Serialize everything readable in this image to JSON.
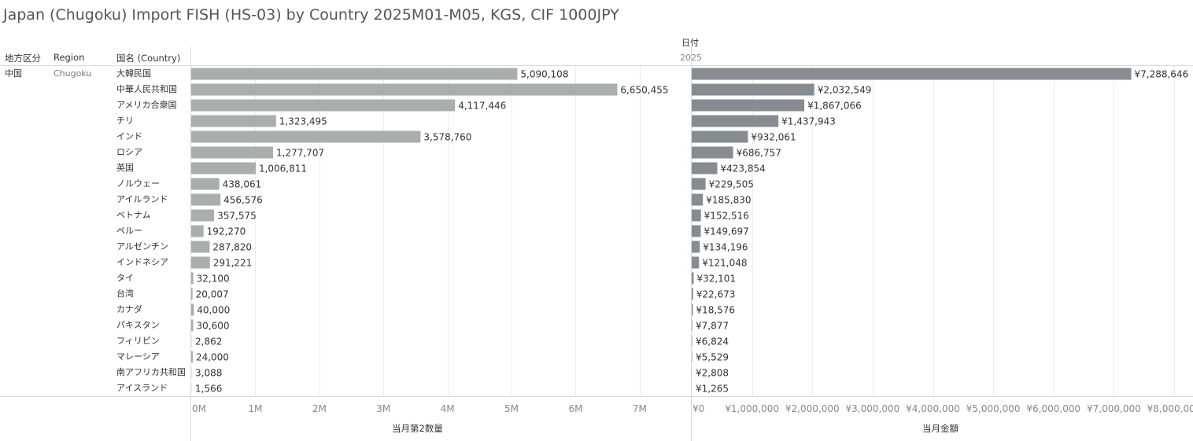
{
  "title": "Japan (Chugoku) Import FISH (HS-03) by Country 2025M01-M05, KGS, CIF 1000JPY",
  "headers": {
    "pref": "地方区分",
    "region": "Region",
    "country": "国名 (Country)",
    "date": "日付",
    "year": "2025"
  },
  "row_group": {
    "pref": "中国",
    "region": "Chugoku"
  },
  "colors": {
    "quantity_bar": "#a8adad",
    "amount_bar": "#858c92",
    "grid": "#ececec",
    "axis": "#d9d9d9"
  },
  "chart_data": [
    {
      "type": "bar",
      "orientation": "horizontal",
      "xlabel": "当月第2数量",
      "xlim": [
        0,
        7800000
      ],
      "ticks": [
        0,
        1000000,
        2000000,
        3000000,
        4000000,
        5000000,
        6000000,
        7000000
      ],
      "tick_labels": [
        "0M",
        "1M",
        "2M",
        "3M",
        "4M",
        "5M",
        "6M",
        "7M"
      ],
      "grid": true,
      "categories": [
        "大韓民国",
        "中華人民共和国",
        "アメリカ合衆国",
        "チリ",
        "インド",
        "ロシア",
        "英国",
        "ノルウェー",
        "アイルランド",
        "ベトナム",
        "ペルー",
        "アルゼンチン",
        "インドネシア",
        "タイ",
        "台湾",
        "カナダ",
        "パキスタン",
        "フィリピン",
        "マレーシア",
        "南アフリカ共和国",
        "アイスランド"
      ],
      "values": [
        5090108,
        6650455,
        4117446,
        1323495,
        3578760,
        1277707,
        1006811,
        438061,
        456576,
        357575,
        192270,
        287820,
        291221,
        32100,
        20007,
        40000,
        30600,
        2862,
        24000,
        3088,
        1566
      ],
      "labels": [
        "5,090,108",
        "6,650,455",
        "4,117,446",
        "1,323,495",
        "3,578,760",
        "1,277,707",
        "1,006,811",
        "438,061",
        "456,576",
        "357,575",
        "192,270",
        "287,820",
        "291,221",
        "32,100",
        "20,007",
        "40,000",
        "30,600",
        "2,862",
        "24,000",
        "3,088",
        "1,566"
      ]
    },
    {
      "type": "bar",
      "orientation": "horizontal",
      "xlabel": "当月金額",
      "xlim": [
        0,
        8300000
      ],
      "ticks": [
        0,
        1000000,
        2000000,
        3000000,
        4000000,
        5000000,
        6000000,
        7000000,
        8000000
      ],
      "tick_labels": [
        "¥0",
        "¥1,000,000",
        "¥2,000,000",
        "¥3,000,000",
        "¥4,000,000",
        "¥5,000,000",
        "¥6,000,000",
        "¥7,000,000",
        "¥8,000,000"
      ],
      "grid": true,
      "categories": [
        "大韓民国",
        "中華人民共和国",
        "アメリカ合衆国",
        "チリ",
        "インド",
        "ロシア",
        "英国",
        "ノルウェー",
        "アイルランド",
        "ベトナム",
        "ペルー",
        "アルゼンチン",
        "インドネシア",
        "タイ",
        "台湾",
        "カナダ",
        "パキスタン",
        "フィリピン",
        "マレーシア",
        "南アフリカ共和国",
        "アイスランド"
      ],
      "values": [
        7288646,
        2032549,
        1867066,
        1437943,
        932061,
        686757,
        423854,
        229505,
        185830,
        152516,
        149697,
        134196,
        121048,
        32101,
        22673,
        18576,
        7877,
        6824,
        5529,
        2808,
        1265
      ],
      "labels": [
        "¥7,288,646",
        "¥2,032,549",
        "¥1,867,066",
        "¥1,437,943",
        "¥932,061",
        "¥686,757",
        "¥423,854",
        "¥229,505",
        "¥185,830",
        "¥152,516",
        "¥149,697",
        "¥134,196",
        "¥121,048",
        "¥32,101",
        "¥22,673",
        "¥18,576",
        "¥7,877",
        "¥6,824",
        "¥5,529",
        "¥2,808",
        "¥1,265"
      ]
    }
  ]
}
